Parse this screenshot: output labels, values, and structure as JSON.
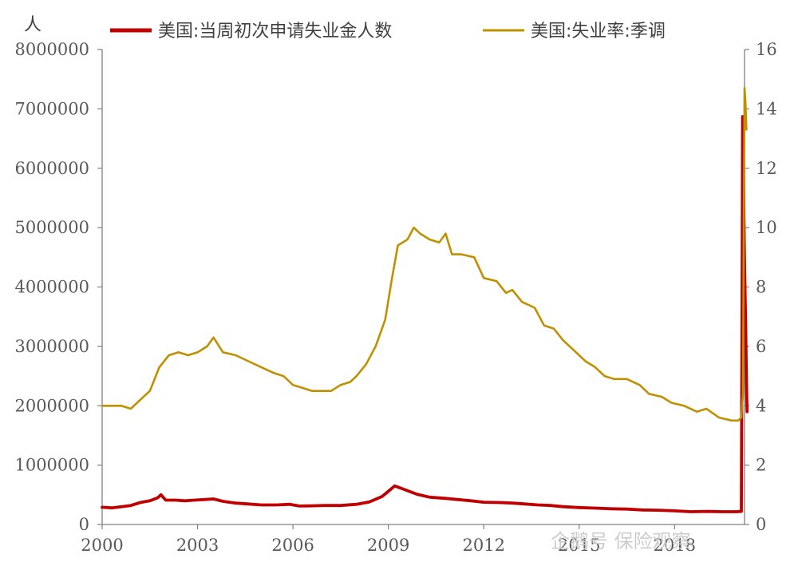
{
  "chart_data": {
    "type": "line",
    "y_unit_left": "人",
    "legend_position": "top",
    "grid": false,
    "xlim": [
      2000,
      2020.2
    ],
    "ylim_left": [
      0,
      8000000
    ],
    "ylim_right": [
      0,
      16
    ],
    "x_ticks": [
      2000,
      2003,
      2006,
      2009,
      2012,
      2015,
      2018
    ],
    "x_tick_labels": [
      "2000",
      "2003",
      "2006",
      "2009",
      "2012",
      "2015",
      "2018"
    ],
    "y_left_ticks": [
      0,
      1000000,
      2000000,
      3000000,
      4000000,
      5000000,
      6000000,
      7000000,
      8000000
    ],
    "y_left_tick_labels": [
      "0",
      "1000000",
      "2000000",
      "3000000",
      "4000000",
      "5000000",
      "6000000",
      "7000000",
      "8000000"
    ],
    "y_right_ticks": [
      0,
      2,
      4,
      6,
      8,
      10,
      12,
      14,
      16
    ],
    "y_right_tick_labels": [
      "0",
      "2",
      "4",
      "6",
      "8",
      "10",
      "12",
      "14",
      "16"
    ],
    "series": [
      {
        "name": "美国:当周初次申请失业金人数",
        "axis": "left",
        "color": "#c00000",
        "points": [
          [
            2000.0,
            290000
          ],
          [
            2000.3,
            280000
          ],
          [
            2000.6,
            300000
          ],
          [
            2000.9,
            320000
          ],
          [
            2001.2,
            370000
          ],
          [
            2001.5,
            400000
          ],
          [
            2001.75,
            450000
          ],
          [
            2001.85,
            500000
          ],
          [
            2002.0,
            410000
          ],
          [
            2002.3,
            410000
          ],
          [
            2002.6,
            400000
          ],
          [
            2002.9,
            410000
          ],
          [
            2003.2,
            420000
          ],
          [
            2003.5,
            430000
          ],
          [
            2003.8,
            390000
          ],
          [
            2004.2,
            360000
          ],
          [
            2004.6,
            345000
          ],
          [
            2005.0,
            330000
          ],
          [
            2005.5,
            330000
          ],
          [
            2005.9,
            340000
          ],
          [
            2006.2,
            310000
          ],
          [
            2006.6,
            315000
          ],
          [
            2007.0,
            320000
          ],
          [
            2007.5,
            320000
          ],
          [
            2008.0,
            340000
          ],
          [
            2008.4,
            380000
          ],
          [
            2008.8,
            470000
          ],
          [
            2009.0,
            560000
          ],
          [
            2009.2,
            650000
          ],
          [
            2009.5,
            590000
          ],
          [
            2009.9,
            510000
          ],
          [
            2010.3,
            460000
          ],
          [
            2010.8,
            440000
          ],
          [
            2011.2,
            420000
          ],
          [
            2011.6,
            400000
          ],
          [
            2012.0,
            375000
          ],
          [
            2012.5,
            370000
          ],
          [
            2012.9,
            360000
          ],
          [
            2013.3,
            345000
          ],
          [
            2013.7,
            330000
          ],
          [
            2014.1,
            320000
          ],
          [
            2014.5,
            300000
          ],
          [
            2015.0,
            285000
          ],
          [
            2015.5,
            275000
          ],
          [
            2016.0,
            265000
          ],
          [
            2016.5,
            260000
          ],
          [
            2017.0,
            245000
          ],
          [
            2017.5,
            240000
          ],
          [
            2018.0,
            230000
          ],
          [
            2018.5,
            215000
          ],
          [
            2019.0,
            220000
          ],
          [
            2019.5,
            215000
          ],
          [
            2019.95,
            215000
          ],
          [
            2020.1,
            220000
          ],
          [
            2020.12,
            3300000
          ],
          [
            2020.14,
            6870000
          ],
          [
            2020.16,
            6600000
          ],
          [
            2020.18,
            5200000
          ],
          [
            2020.2,
            4400000
          ],
          [
            2020.22,
            3800000
          ],
          [
            2020.24,
            3200000
          ],
          [
            2020.26,
            2400000
          ],
          [
            2020.28,
            1900000
          ]
        ]
      },
      {
        "name": "美国:失业率:季调",
        "axis": "right",
        "color": "#bf9000",
        "points": [
          [
            2000.0,
            4.0
          ],
          [
            2000.3,
            4.0
          ],
          [
            2000.6,
            4.0
          ],
          [
            2000.9,
            3.9
          ],
          [
            2001.2,
            4.2
          ],
          [
            2001.5,
            4.5
          ],
          [
            2001.8,
            5.3
          ],
          [
            2002.1,
            5.7
          ],
          [
            2002.4,
            5.8
          ],
          [
            2002.7,
            5.7
          ],
          [
            2003.0,
            5.8
          ],
          [
            2003.3,
            6.0
          ],
          [
            2003.5,
            6.3
          ],
          [
            2003.8,
            5.8
          ],
          [
            2004.2,
            5.7
          ],
          [
            2004.6,
            5.5
          ],
          [
            2005.0,
            5.3
          ],
          [
            2005.4,
            5.1
          ],
          [
            2005.7,
            5.0
          ],
          [
            2006.0,
            4.7
          ],
          [
            2006.3,
            4.6
          ],
          [
            2006.6,
            4.5
          ],
          [
            2006.9,
            4.5
          ],
          [
            2007.2,
            4.5
          ],
          [
            2007.5,
            4.7
          ],
          [
            2007.8,
            4.8
          ],
          [
            2008.0,
            5.0
          ],
          [
            2008.3,
            5.4
          ],
          [
            2008.6,
            6.0
          ],
          [
            2008.9,
            6.9
          ],
          [
            2009.1,
            8.2
          ],
          [
            2009.3,
            9.4
          ],
          [
            2009.6,
            9.6
          ],
          [
            2009.8,
            10.0
          ],
          [
            2010.0,
            9.8
          ],
          [
            2010.3,
            9.6
          ],
          [
            2010.6,
            9.5
          ],
          [
            2010.8,
            9.8
          ],
          [
            2011.0,
            9.1
          ],
          [
            2011.3,
            9.1
          ],
          [
            2011.7,
            9.0
          ],
          [
            2012.0,
            8.3
          ],
          [
            2012.4,
            8.2
          ],
          [
            2012.7,
            7.8
          ],
          [
            2012.9,
            7.9
          ],
          [
            2013.2,
            7.5
          ],
          [
            2013.6,
            7.3
          ],
          [
            2013.9,
            6.7
          ],
          [
            2014.2,
            6.6
          ],
          [
            2014.5,
            6.2
          ],
          [
            2014.9,
            5.8
          ],
          [
            2015.2,
            5.5
          ],
          [
            2015.5,
            5.3
          ],
          [
            2015.8,
            5.0
          ],
          [
            2016.1,
            4.9
          ],
          [
            2016.5,
            4.9
          ],
          [
            2016.9,
            4.7
          ],
          [
            2017.2,
            4.4
          ],
          [
            2017.6,
            4.3
          ],
          [
            2017.9,
            4.1
          ],
          [
            2018.3,
            4.0
          ],
          [
            2018.7,
            3.8
          ],
          [
            2019.0,
            3.9
          ],
          [
            2019.4,
            3.6
          ],
          [
            2019.8,
            3.5
          ],
          [
            2020.0,
            3.5
          ],
          [
            2020.1,
            3.6
          ],
          [
            2020.15,
            4.4
          ],
          [
            2020.2,
            14.7
          ],
          [
            2020.23,
            14.2
          ],
          [
            2020.26,
            13.3
          ]
        ]
      }
    ]
  },
  "watermark": "企鹅号 保险观察"
}
